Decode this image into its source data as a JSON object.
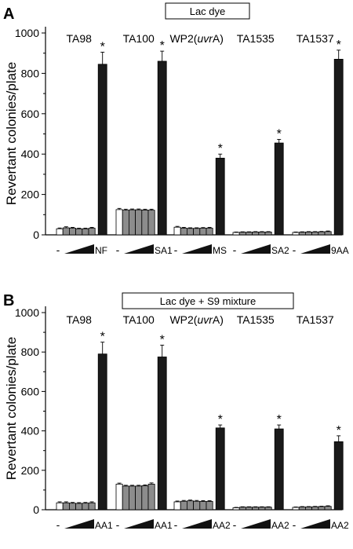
{
  "chart_data": [
    {
      "type": "bar",
      "panel_label": "A",
      "title": "Lac dye",
      "ylabel": "Revertant colonies/plate",
      "ylim": [
        0,
        1000
      ],
      "yticks": [
        0,
        200,
        400,
        600,
        800,
        1000
      ],
      "groups": [
        {
          "strain": "TA98",
          "strain_italic": "",
          "strain_suffix": "",
          "control_label": "NF",
          "neg": 30,
          "doses": [
            35,
            33,
            30,
            30,
            33
          ],
          "pos": 845,
          "neg_err": 4,
          "dose_err": [
            5,
            4,
            3,
            3,
            4
          ],
          "pos_err": 60,
          "significant": true
        },
        {
          "strain": "TA100",
          "strain_italic": "",
          "strain_suffix": "",
          "control_label": "SA1",
          "neg": 125,
          "doses": [
            122,
            124,
            124,
            123,
            122
          ],
          "pos": 860,
          "neg_err": 6,
          "dose_err": [
            5,
            4,
            4,
            4,
            5
          ],
          "pos_err": 50,
          "significant": true
        },
        {
          "strain": "WP2(",
          "strain_italic": "uvr",
          "strain_suffix": "A)",
          "control_label": "MS",
          "neg": 38,
          "doses": [
            33,
            32,
            32,
            33,
            33
          ],
          "pos": 380,
          "neg_err": 4,
          "dose_err": [
            4,
            3,
            3,
            3,
            4
          ],
          "pos_err": 20,
          "significant": true
        },
        {
          "strain": "TA1535",
          "strain_italic": "",
          "strain_suffix": "",
          "control_label": "SA2",
          "neg": 12,
          "doses": [
            13,
            13,
            14,
            14,
            14
          ],
          "pos": 455,
          "neg_err": 2,
          "dose_err": [
            2,
            2,
            2,
            2,
            2
          ],
          "pos_err": 18,
          "significant": true
        },
        {
          "strain": "TA1537",
          "strain_italic": "",
          "strain_suffix": "",
          "control_label": "9AA",
          "neg": 12,
          "doses": [
            13,
            14,
            14,
            15,
            16
          ],
          "pos": 870,
          "neg_err": 2,
          "dose_err": [
            2,
            2,
            2,
            2,
            3
          ],
          "pos_err": 45,
          "significant": true
        }
      ]
    },
    {
      "type": "bar",
      "panel_label": "B",
      "title": "Lac dye + S9 mixture",
      "ylabel": "Revertant colonies/plate",
      "ylim": [
        0,
        1000
      ],
      "yticks": [
        0,
        200,
        400,
        600,
        800,
        1000
      ],
      "groups": [
        {
          "strain": "TA98",
          "strain_italic": "",
          "strain_suffix": "",
          "control_label": "AA1",
          "neg": 35,
          "doses": [
            35,
            33,
            32,
            33,
            35
          ],
          "pos": 790,
          "neg_err": 5,
          "dose_err": [
            5,
            4,
            4,
            4,
            5
          ],
          "pos_err": 60,
          "significant": true
        },
        {
          "strain": "TA100",
          "strain_italic": "",
          "strain_suffix": "",
          "control_label": "AA1",
          "neg": 130,
          "doses": [
            120,
            120,
            120,
            122,
            130
          ],
          "pos": 775,
          "neg_err": 5,
          "dose_err": [
            4,
            4,
            4,
            4,
            6
          ],
          "pos_err": 60,
          "significant": true
        },
        {
          "strain": "WP2(",
          "strain_italic": "uvr",
          "strain_suffix": "A)",
          "control_label": "AA2",
          "neg": 40,
          "doses": [
            43,
            45,
            43,
            42,
            42
          ],
          "pos": 415,
          "neg_err": 4,
          "dose_err": [
            4,
            4,
            4,
            4,
            4
          ],
          "pos_err": 15,
          "significant": true
        },
        {
          "strain": "TA1535",
          "strain_italic": "",
          "strain_suffix": "",
          "control_label": "AA2",
          "neg": 10,
          "doses": [
            13,
            13,
            13,
            13,
            13
          ],
          "pos": 410,
          "neg_err": 2,
          "dose_err": [
            2,
            2,
            2,
            2,
            2
          ],
          "pos_err": 20,
          "significant": true
        },
        {
          "strain": "TA1537",
          "strain_italic": "",
          "strain_suffix": "",
          "control_label": "AA2",
          "neg": 12,
          "doses": [
            14,
            14,
            15,
            16,
            17
          ],
          "pos": 345,
          "neg_err": 2,
          "dose_err": [
            2,
            2,
            2,
            2,
            3
          ],
          "pos_err": 30,
          "significant": true
        }
      ]
    }
  ],
  "minus_symbol": "-",
  "significance_symbol": "*",
  "colors": {
    "negative_control": "#ffffff",
    "dose_bars": "#8c8c8c",
    "positive_control": "#1a1a1a",
    "dose_ramp": "#111111"
  }
}
